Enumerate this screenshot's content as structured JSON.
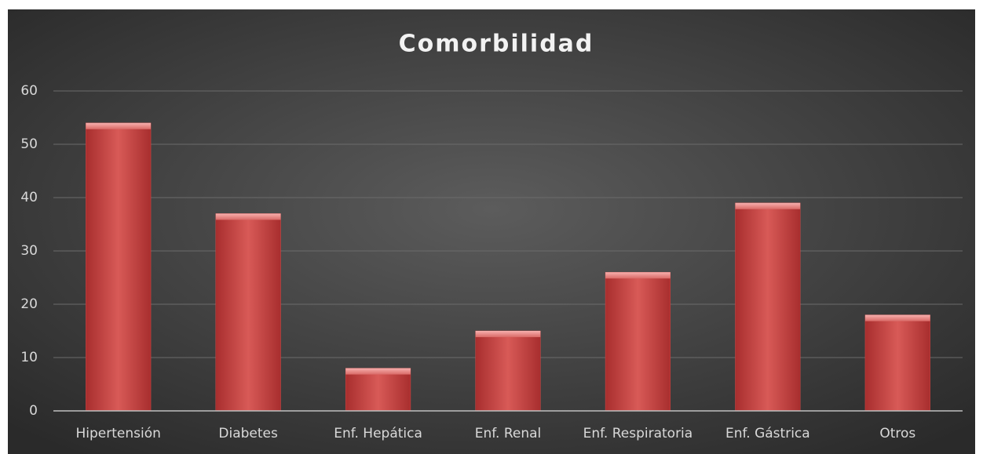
{
  "chart_data": {
    "type": "bar",
    "title": "Comorbilidad",
    "categories": [
      "Hipertensión",
      "Diabetes",
      "Enf. Hepática",
      "Enf. Renal",
      "Enf. Respiratoria",
      "Enf. Gástrica",
      "Otros"
    ],
    "values": [
      54,
      37,
      8,
      15,
      26,
      39,
      18
    ],
    "color": "#d04a48",
    "ylim": [
      0,
      60
    ],
    "yticks": [
      0,
      10,
      20,
      30,
      40,
      50,
      60
    ],
    "grid": true
  }
}
